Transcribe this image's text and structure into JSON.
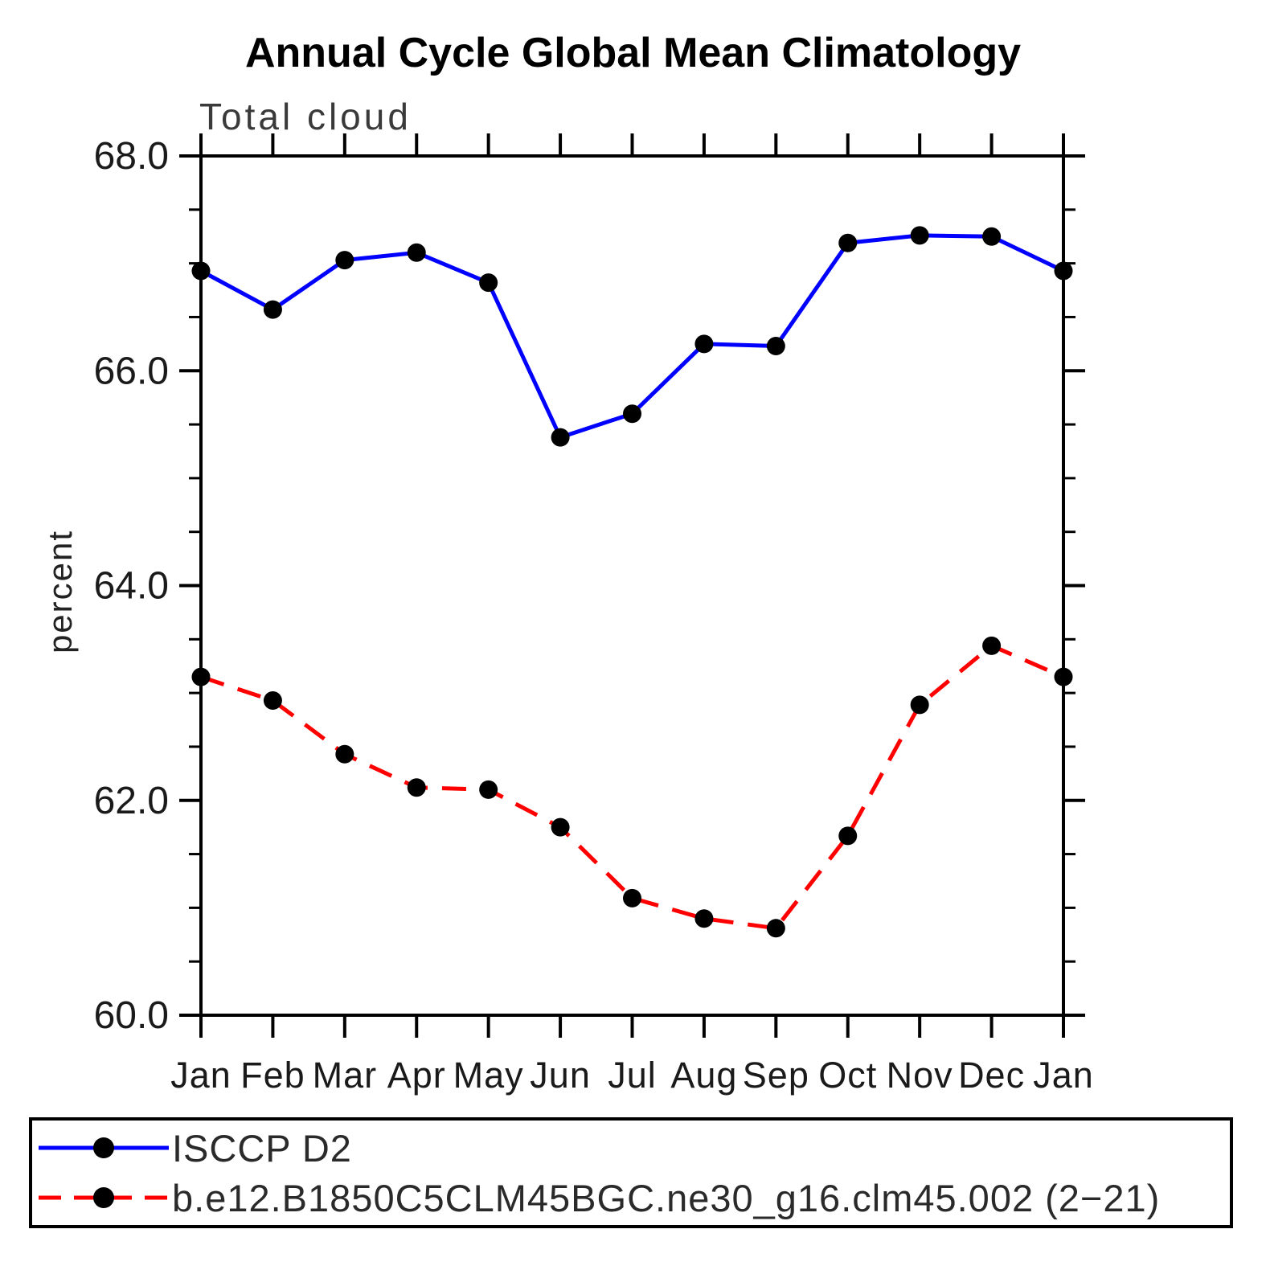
{
  "title": "Annual Cycle Global Mean Climatology",
  "subtitle": "Total cloud",
  "chart_data": {
    "type": "line",
    "categories": [
      "Jan",
      "Feb",
      "Mar",
      "Apr",
      "May",
      "Jun",
      "Jul",
      "Aug",
      "Sep",
      "Oct",
      "Nov",
      "Dec",
      "Jan"
    ],
    "xlabel": "",
    "ylabel": "percent",
    "ylim": [
      60.0,
      68.0
    ],
    "ytick_interval": 2.0,
    "yminor_interval": 0.5,
    "yticks": [
      68.0,
      66.0,
      64.0,
      62.0,
      60.0
    ],
    "ytick_labels": [
      "68.0",
      "66.0",
      "64.0",
      "62.0",
      "60.0"
    ],
    "grid": false,
    "legend_position": "bottom-box",
    "series": [
      {
        "name": "ISCCP D2",
        "line_style": "solid",
        "color": "#0000ff",
        "marker": "filled-circle",
        "marker_color": "#000000",
        "values": [
          66.93,
          66.57,
          67.03,
          67.1,
          66.82,
          65.38,
          65.6,
          66.25,
          66.23,
          67.19,
          67.26,
          67.25,
          66.93
        ]
      },
      {
        "name": "b.e12.B1850C5CLM45BGC.ne30_g16.clm45.002 (2−21)",
        "line_style": "dashed",
        "color": "#ff0000",
        "marker": "filled-circle",
        "marker_color": "#000000",
        "values": [
          63.15,
          62.93,
          62.43,
          62.12,
          62.1,
          61.75,
          61.09,
          60.9,
          60.81,
          61.67,
          62.89,
          63.44,
          63.15
        ]
      }
    ]
  },
  "colors": {
    "frame": "#000000",
    "text": "#1a1a1a",
    "series_blue": "#0000ff",
    "series_red": "#ff0000",
    "marker": "#000000"
  }
}
